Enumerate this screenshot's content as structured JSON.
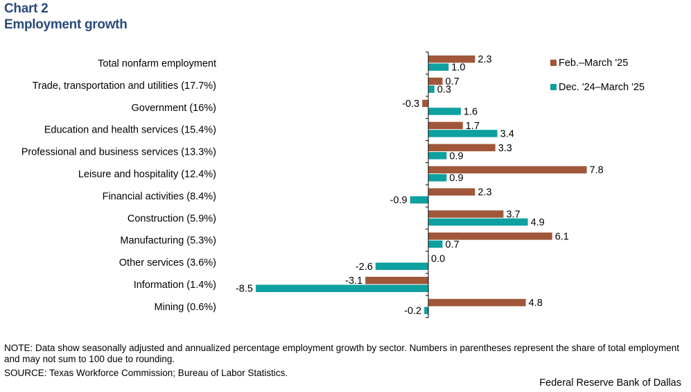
{
  "chart_data": {
    "type": "bar",
    "orientation": "horizontal",
    "label": "Chart 2",
    "title": "Employment growth",
    "categories": [
      "Total nonfarm employment",
      "Trade, transportation and utilities (17.7%)",
      "Government (16%)",
      "Education and health services (15.4%)",
      "Professional and business services (13.3%)",
      "Leisure and hospitality (12.4%)",
      "Financial activities (8.4%)",
      "Construction (5.9%)",
      "Manufacturing (5.3%)",
      "Other services (3.6%)",
      "Information (1.4%)",
      "Mining (0.6%)"
    ],
    "series": [
      {
        "name": "Feb.–March '25",
        "color": "#a0573a",
        "values": [
          2.3,
          0.7,
          -0.3,
          1.7,
          3.3,
          7.8,
          2.3,
          3.7,
          6.1,
          0.0,
          -3.1,
          4.8
        ],
        "labels": [
          "2.3",
          "0.7",
          "-0.3",
          "1.7",
          "3.3",
          "7.8",
          "2.3",
          "3.7",
          "6.1",
          "0.0",
          "-3.1",
          "4.8"
        ]
      },
      {
        "name": "Dec. '24–March '25",
        "color": "#0fa0a0",
        "values": [
          1.0,
          0.3,
          1.6,
          3.4,
          0.9,
          0.9,
          -0.9,
          4.9,
          0.7,
          -2.6,
          -8.5,
          -0.2
        ],
        "labels": [
          "1.0",
          "0.3",
          "1.6",
          "3.4",
          "0.9",
          "0.9",
          "-0.9",
          "4.9",
          "0.7",
          "-2.6",
          "-8.5",
          "-0.2"
        ]
      }
    ],
    "xlim": [
      -8.5,
      8.5
    ],
    "grid": false,
    "legend_position": "top-right"
  },
  "notes": {
    "note": "NOTE: Data show seasonally adjusted and annualized percentage employment growth by sector. Numbers in parentheses represent the share of total employment and may not sum to 100 due to rounding.",
    "source": "SOURCE: Texas Workforce Commission; Bureau of Labor Statistics.",
    "credit": "Federal Reserve Bank of Dallas"
  }
}
